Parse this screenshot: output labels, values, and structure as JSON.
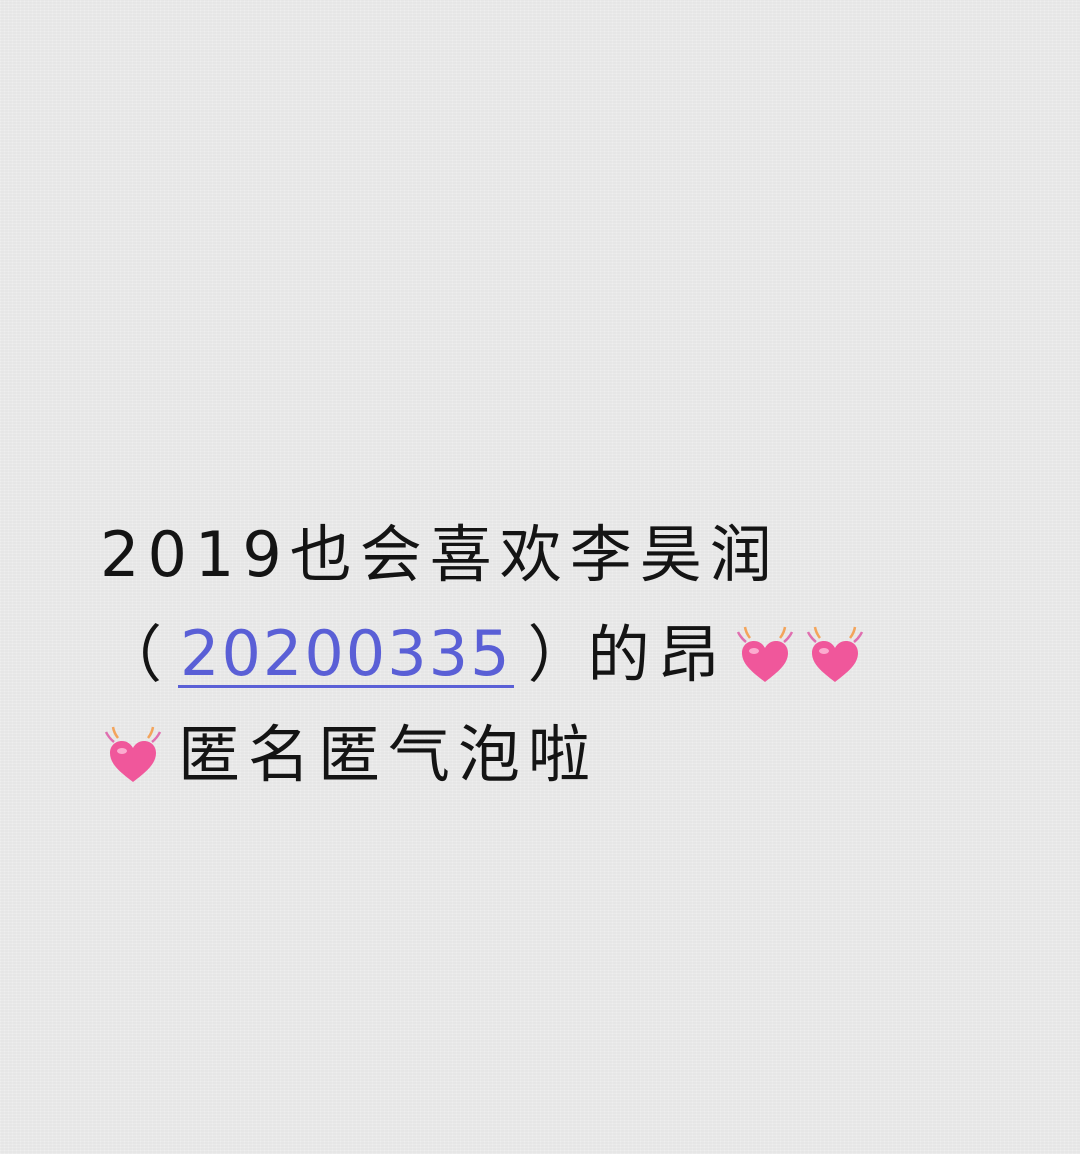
{
  "note": {
    "line1": "2019也会喜欢李昊润",
    "line2_open_paren": "（",
    "line2_link": "20200335",
    "line2_close_paren": "）",
    "line2_suffix": "的昂",
    "line3_text": "匿名匿气泡啦"
  },
  "icons": {
    "heart": "beating-heart-icon"
  },
  "colors": {
    "background": "#ececec",
    "text": "#141414",
    "link": "#5a5fd6",
    "heart": "#f0579b"
  }
}
